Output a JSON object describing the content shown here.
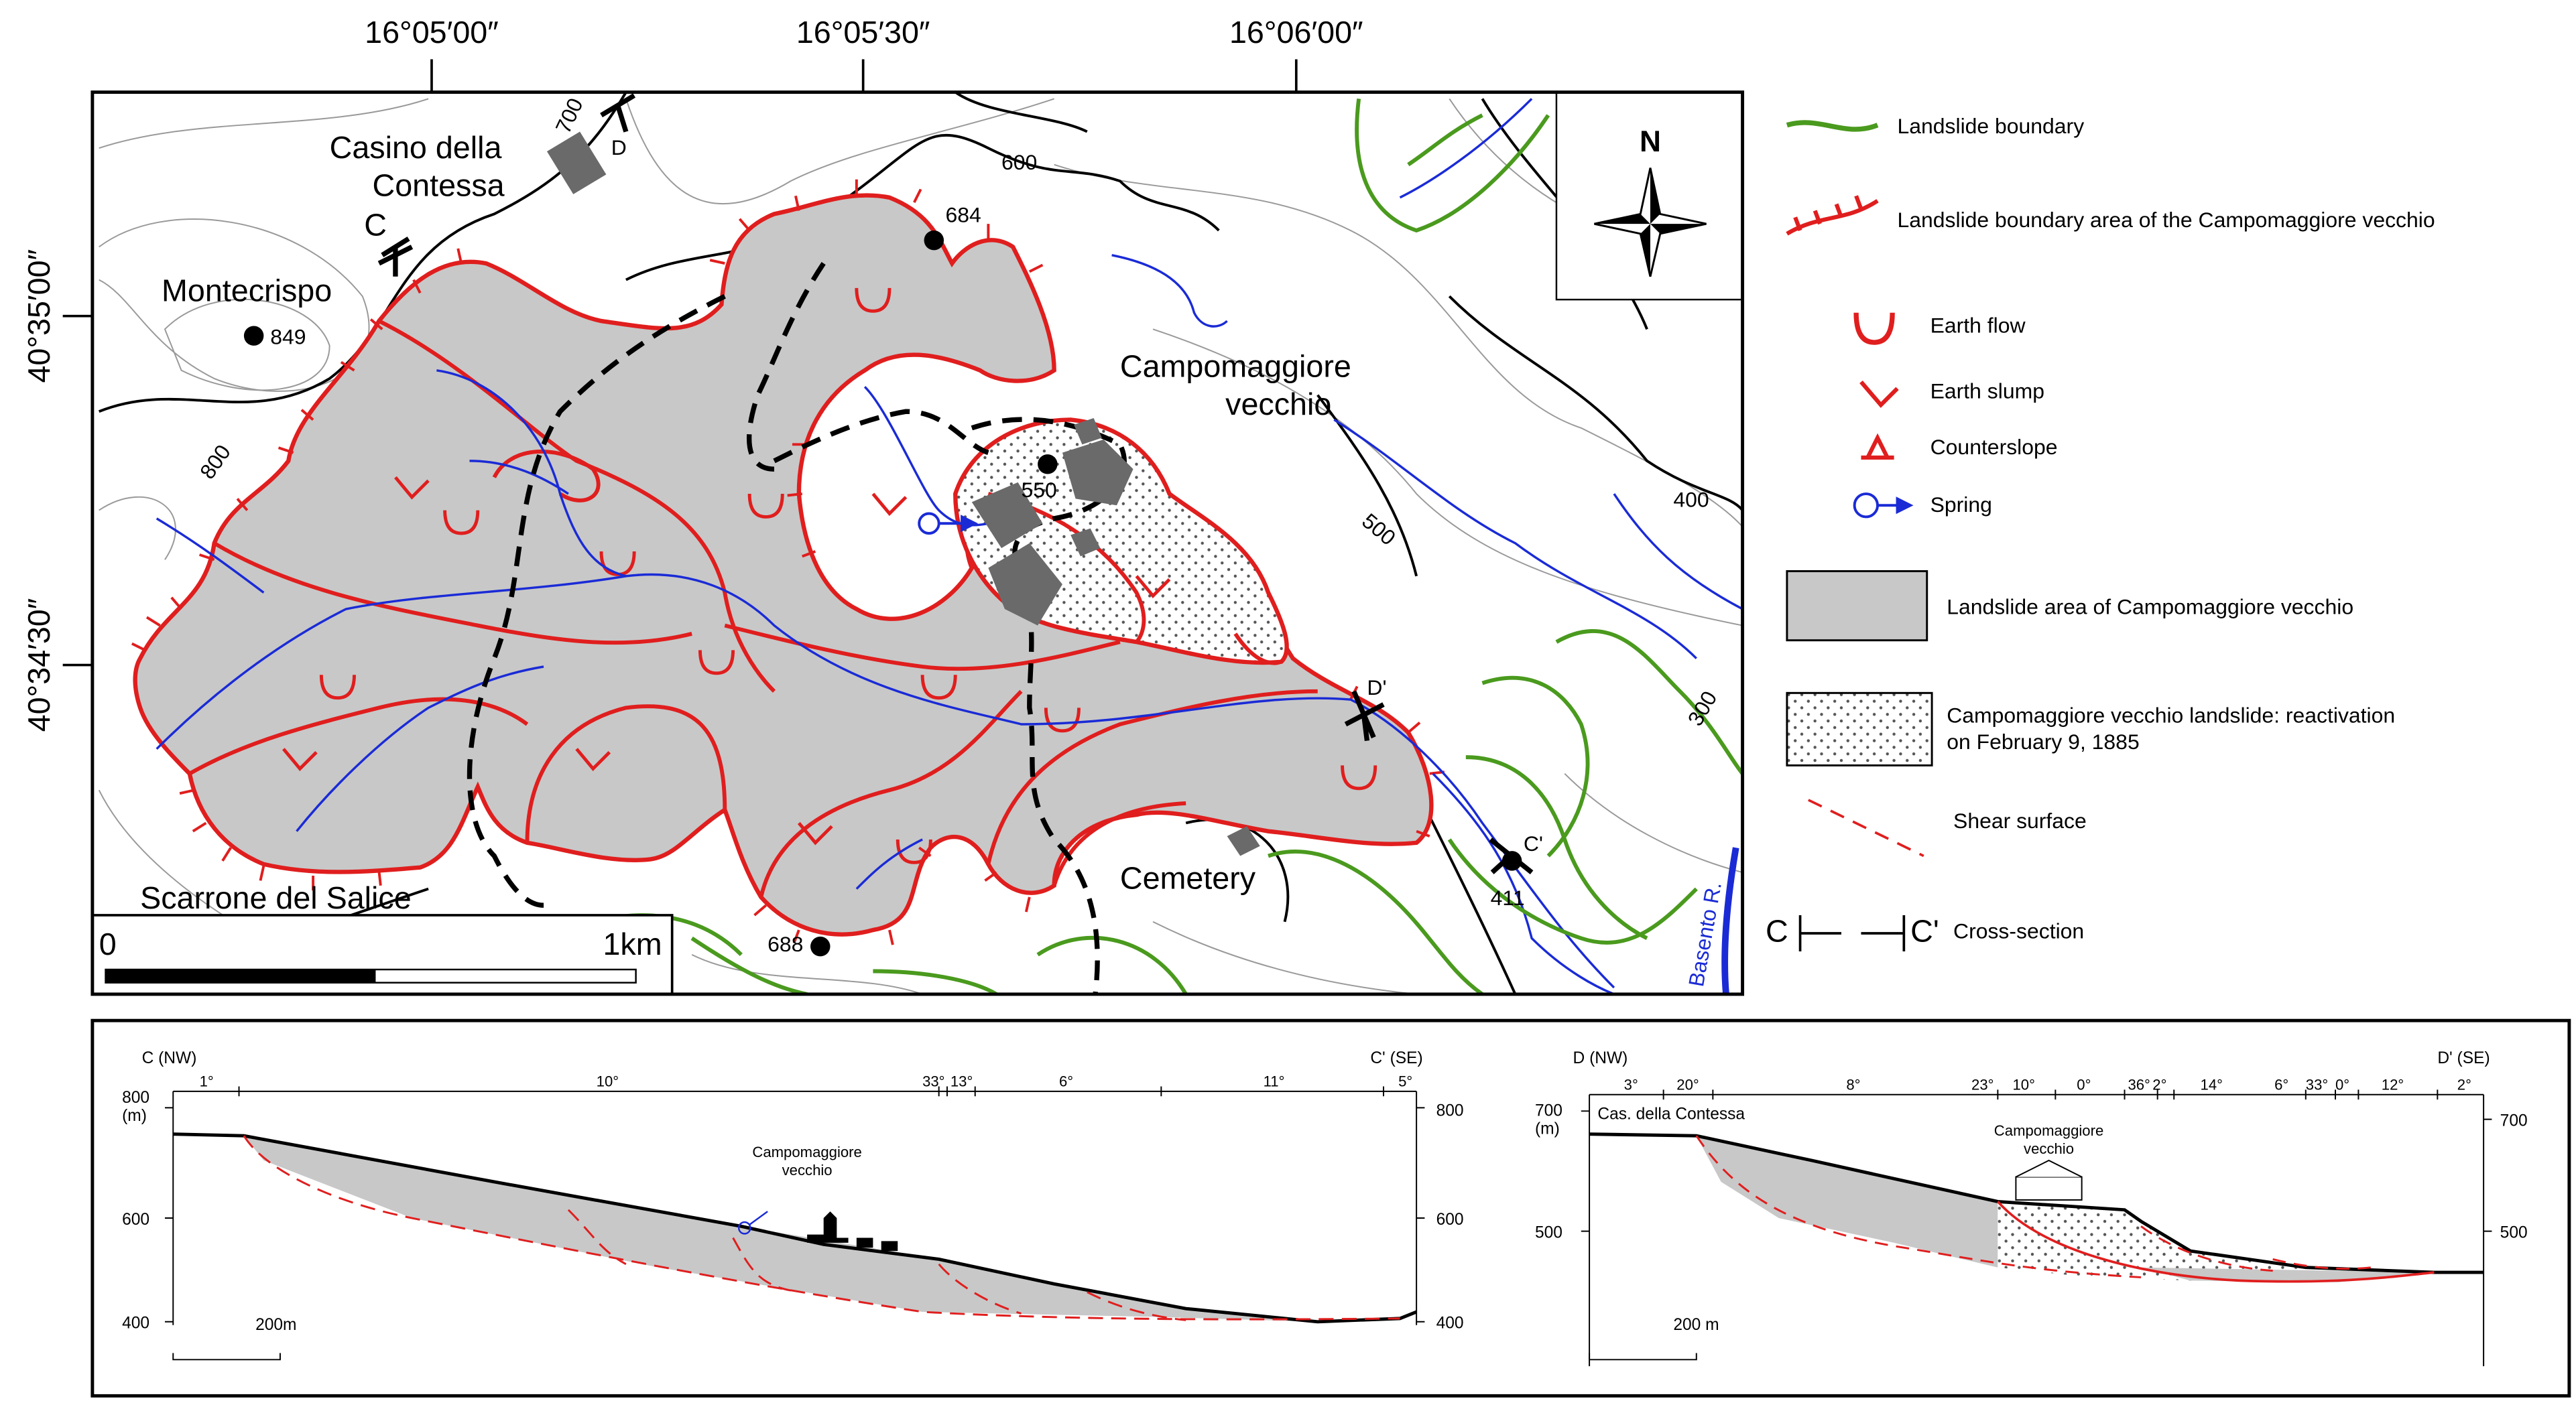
{
  "coordinates": {
    "longitudes": [
      "16°05′00″",
      "16°05′30″",
      "16°06′00″"
    ],
    "latitudes": [
      "40°35′00″",
      "40°34′30″"
    ]
  },
  "map": {
    "places": [
      [
        "Casino della",
        "Contessa"
      ],
      [
        "Montecrispo"
      ],
      [
        "Campomaggiore",
        "vecchio"
      ],
      [
        "Cemetery"
      ],
      [
        "Scarrone del Salice"
      ]
    ],
    "elevations": [
      "849",
      "684",
      "550",
      "688",
      "411"
    ],
    "contours": [
      "600",
      "800",
      "700",
      "500",
      "400",
      "300"
    ],
    "section_ends": [
      "C",
      "D",
      "C'",
      "D'"
    ],
    "river": "Basento R.",
    "north": "N",
    "scale": [
      "0",
      "1km"
    ]
  },
  "legend": [
    [
      "Landslide boundary"
    ],
    [
      "Landslide boundary area of the Campomaggiore vecchio"
    ],
    [
      "Earth flow"
    ],
    [
      "Earth slump"
    ],
    [
      "Counterslope"
    ],
    [
      "Spring"
    ],
    [
      "Landslide area of Campomaggiore vecchio"
    ],
    [
      "Campomaggiore vecchio landslide: reactivation",
      "on February 9, 1885"
    ],
    [
      "Shear surface"
    ],
    [
      "C",
      "C'",
      "Cross-section"
    ]
  ],
  "cross_sections": [
    {
      "start": "C (NW)",
      "end": "C' (SE)",
      "unit": "(m)",
      "elevations": [
        "800",
        "600",
        "400"
      ],
      "slopes": [
        "1°",
        "10°",
        "33°",
        "13°",
        "6°",
        "11°",
        "5°"
      ],
      "site": [
        "Campomaggiore",
        "vecchio"
      ],
      "scale": "200m"
    },
    {
      "start": "D (NW)",
      "end": "D' (SE)",
      "unit": "(m)",
      "elevations": [
        "700",
        "500"
      ],
      "slopes": [
        "3°",
        "20°",
        "8°",
        "23°",
        "10°",
        "0°",
        "36°",
        "2°",
        "14°",
        "6°",
        "33°",
        "0°",
        "12°",
        "2°"
      ],
      "place": "Cas. della Contessa",
      "site": [
        "Campomaggiore",
        "vecchio"
      ],
      "scale": "200 m"
    }
  ]
}
